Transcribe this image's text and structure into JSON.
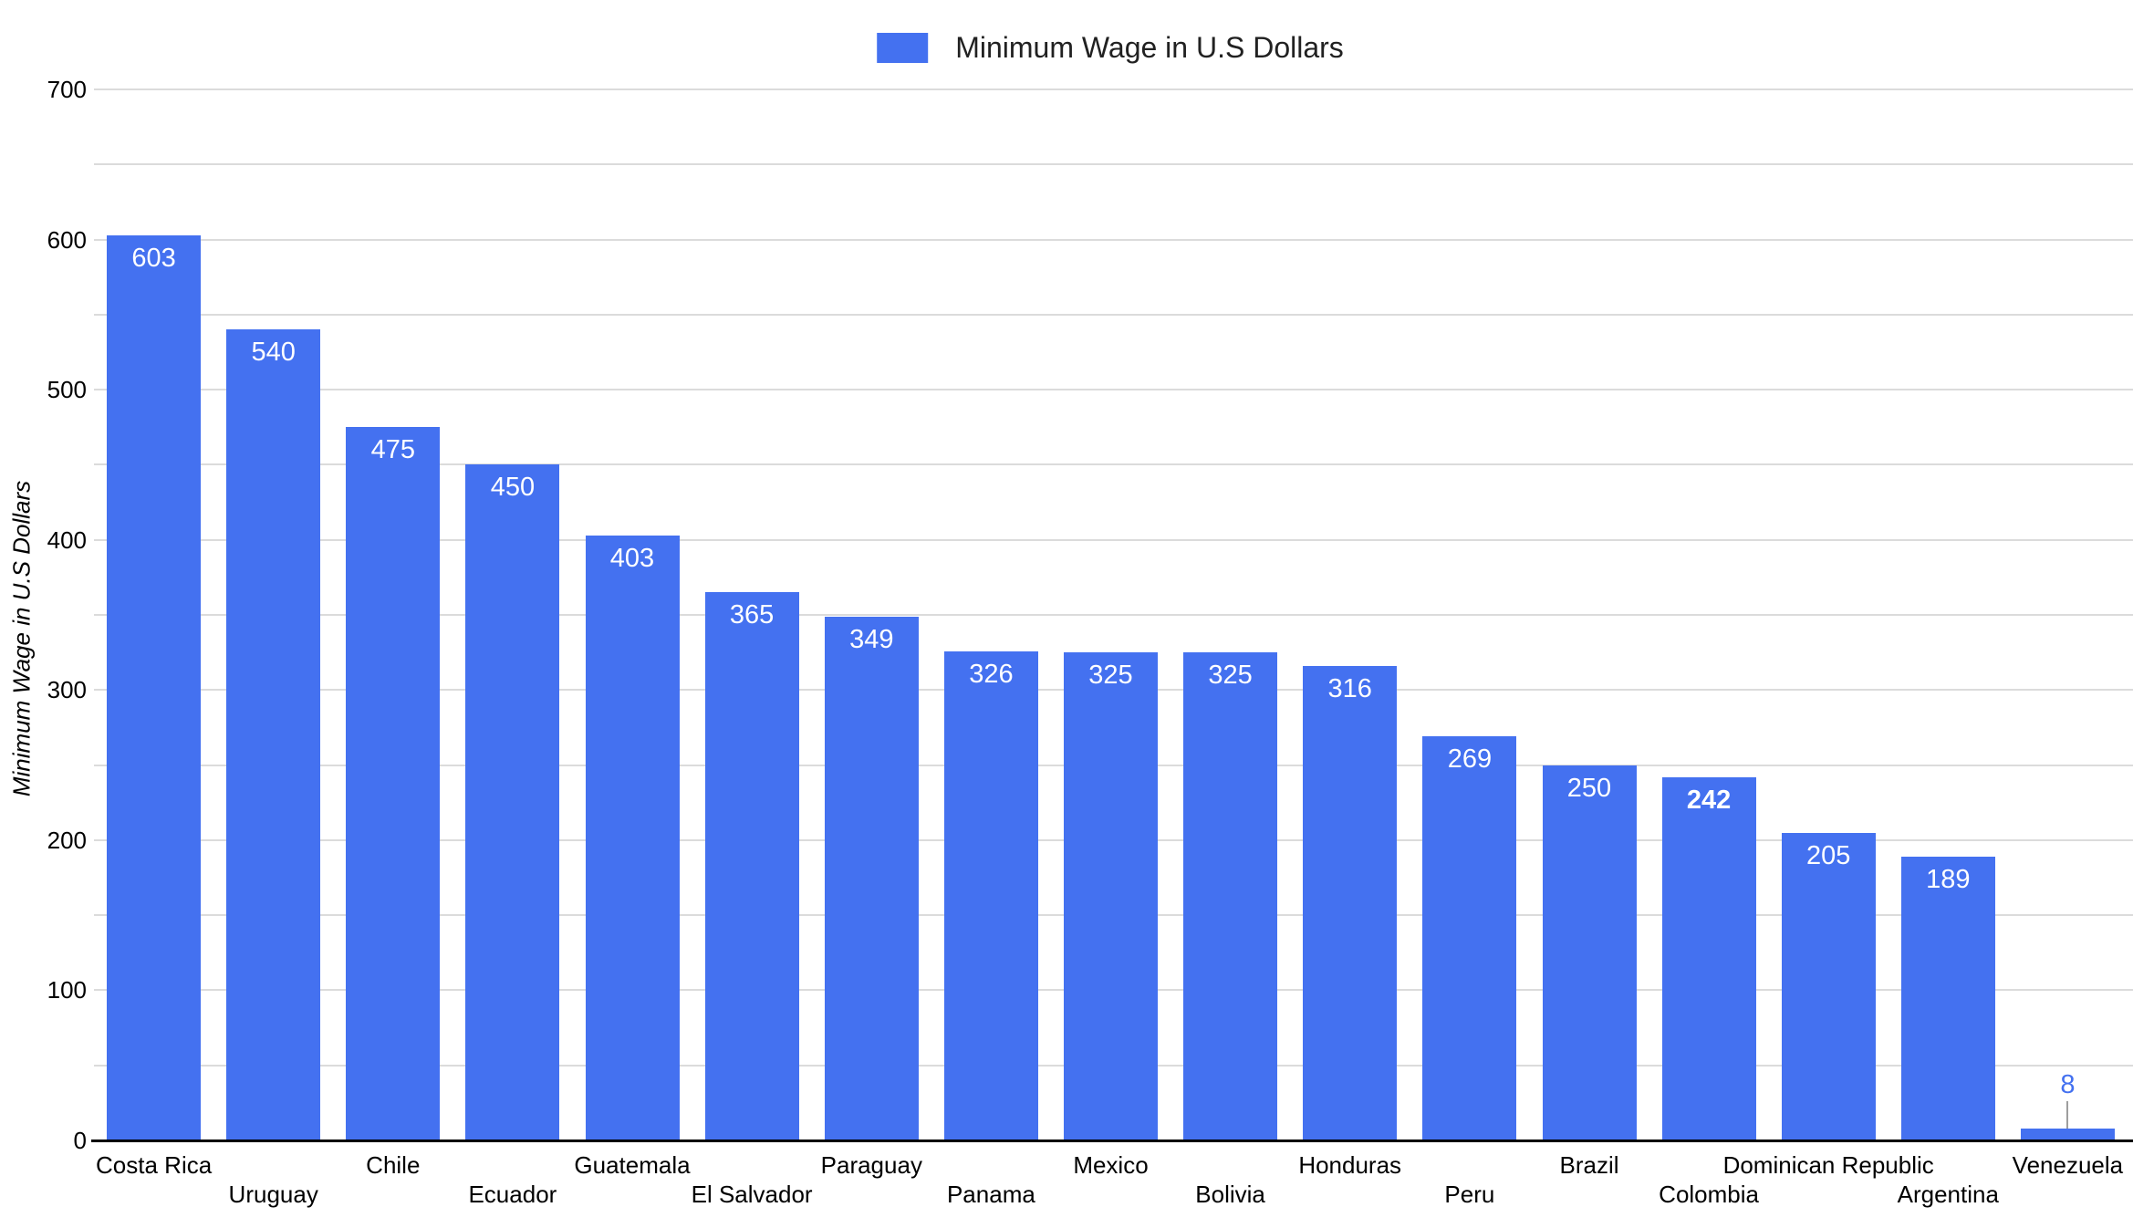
{
  "chart_data": {
    "type": "bar",
    "legend": "Minimum Wage in U.S Dollars",
    "ylabel": "Minimum Wage in U.S Dollars",
    "categories": [
      "Costa Rica",
      "Uruguay",
      "Chile",
      "Ecuador",
      "Guatemala",
      "El Salvador",
      "Paraguay",
      "Panama",
      "Mexico",
      "Bolivia",
      "Honduras",
      "Peru",
      "Brazil",
      "Colombia",
      "Dominican Republic",
      "Argentina",
      "Venezuela"
    ],
    "values": [
      603,
      540,
      475,
      450,
      403,
      365,
      349,
      326,
      325,
      325,
      316,
      269,
      250,
      242,
      205,
      189,
      8
    ],
    "ylim": [
      0,
      700
    ],
    "yticks": [
      0,
      100,
      200,
      300,
      400,
      500,
      600,
      700
    ],
    "gridline_step": 50,
    "grid": true,
    "legend_position": "top",
    "emphasized_category": "Colombia",
    "outside_annotation_category": "Venezuela",
    "colors": {
      "bar": "#4471F0",
      "value_label": "#FFFFFF",
      "outside_label": "#4471F0",
      "stem": "#9E9E9E",
      "gridline": "#DBDBDB",
      "axis_line": "#000000",
      "text": "#000000"
    }
  }
}
